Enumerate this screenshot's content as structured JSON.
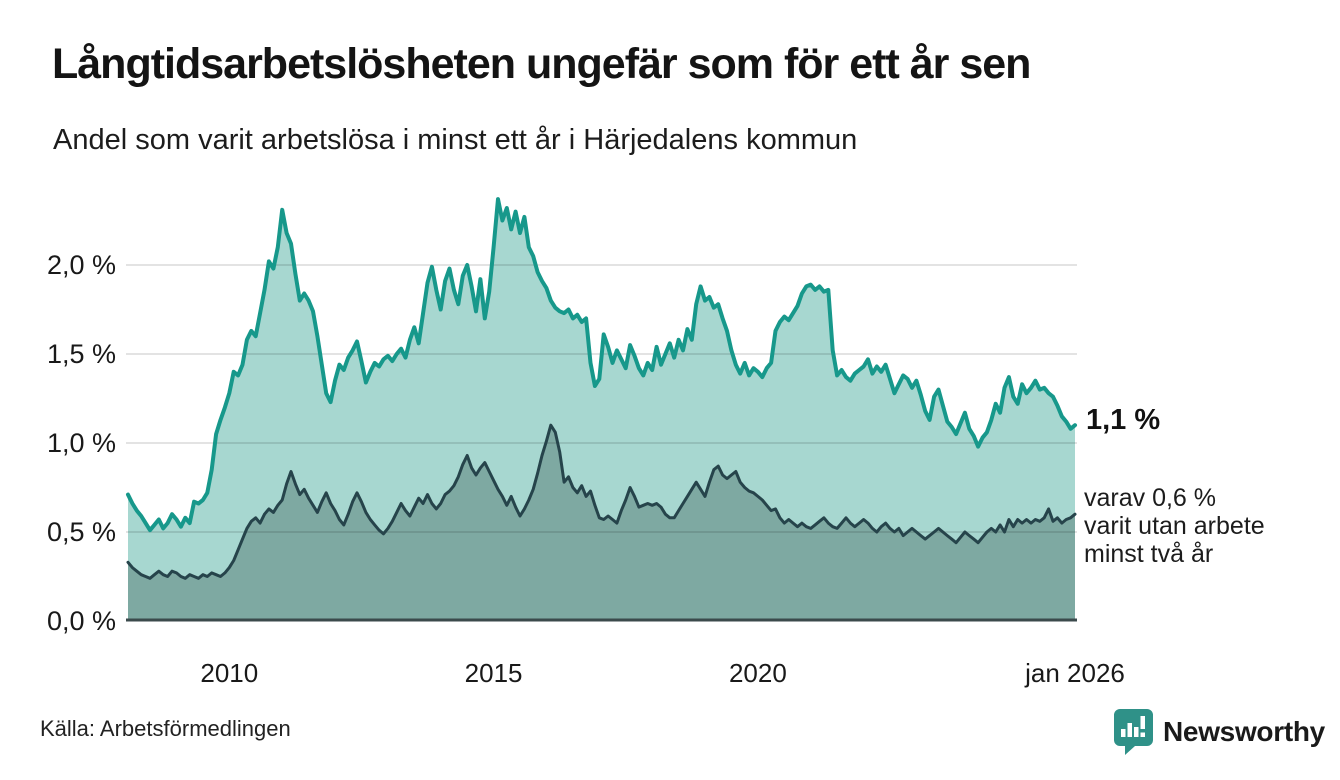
{
  "header": {
    "title": "Långtidsarbetslösheten ungefär som för ett år sen",
    "subtitle": "Andel som varit arbetslösa i minst ett år i Härjedalens kommun"
  },
  "axes": {
    "y": {
      "labels": [
        "2,0 %",
        "1,5 %",
        "1,0 %",
        "0,5 %",
        "0,0 %"
      ],
      "values": [
        2.0,
        1.5,
        1.0,
        0.5,
        0.0
      ]
    },
    "x": {
      "labels": [
        "2010",
        "2015",
        "2020",
        "jan 2026"
      ],
      "values": [
        2010,
        2015,
        2020,
        2026
      ]
    }
  },
  "annotations": {
    "latest_value": "1,1 %",
    "secondary": {
      "line1": "varav 0,6 %",
      "line2": "varit utan arbete",
      "line3": "minst två år"
    }
  },
  "footer": {
    "source": "Källa: Arbetsförmedlingen",
    "brand": "Newsworthy"
  },
  "colors": {
    "teal_line": "#17988b",
    "teal_fill": "#a7d7d0",
    "dark_line": "#26444b",
    "dark_fill": "#7ea9a2",
    "grid": "rgba(0,0,0,0.11)",
    "axis": "#3b4a4c",
    "brand_teal": "#2f9188",
    "text": "#1a1a1a"
  },
  "chart_data": {
    "type": "area",
    "title": "Långtidsarbetslösheten ungefär som för ett år sen",
    "subtitle": "Andel som varit arbetslösa i minst ett år i Härjedalens kommun",
    "unit": "%",
    "frequency": "monthly",
    "x_start": "2008-02",
    "x_end": "2026-01",
    "ylim": [
      0,
      2.4
    ],
    "yticks": [
      0.0,
      0.5,
      1.0,
      1.5,
      2.0
    ],
    "xticks": [
      {
        "t": 2010.0,
        "label": "2010"
      },
      {
        "t": 2015.0,
        "label": "2015"
      },
      {
        "t": 2020.0,
        "label": "2020"
      },
      {
        "t": 2026.0,
        "label": "jan 2026"
      }
    ],
    "grid": true,
    "legend_position": "right-annotations",
    "series": [
      {
        "name": "arbetslösa minst ett år",
        "latest_label": "1,1 %",
        "latest_value": 1.1,
        "values": [
          0.71,
          0.66,
          0.62,
          0.59,
          0.55,
          0.51,
          0.54,
          0.57,
          0.52,
          0.55,
          0.6,
          0.57,
          0.53,
          0.58,
          0.55,
          0.67,
          0.66,
          0.68,
          0.72,
          0.85,
          1.05,
          1.13,
          1.2,
          1.28,
          1.4,
          1.38,
          1.44,
          1.58,
          1.63,
          1.6,
          1.73,
          1.86,
          2.02,
          1.98,
          2.1,
          2.31,
          2.18,
          2.12,
          1.95,
          1.8,
          1.84,
          1.8,
          1.74,
          1.6,
          1.44,
          1.28,
          1.23,
          1.35,
          1.44,
          1.41,
          1.48,
          1.52,
          1.57,
          1.46,
          1.34,
          1.4,
          1.45,
          1.43,
          1.47,
          1.49,
          1.46,
          1.5,
          1.53,
          1.48,
          1.58,
          1.65,
          1.56,
          1.73,
          1.9,
          1.99,
          1.86,
          1.75,
          1.91,
          1.98,
          1.86,
          1.78,
          1.94,
          2.0,
          1.88,
          1.74,
          1.92,
          1.7,
          1.85,
          2.1,
          2.37,
          2.25,
          2.32,
          2.2,
          2.3,
          2.18,
          2.27,
          2.1,
          2.05,
          1.96,
          1.91,
          1.87,
          1.8,
          1.76,
          1.74,
          1.73,
          1.75,
          1.7,
          1.72,
          1.68,
          1.7,
          1.45,
          1.32,
          1.36,
          1.61,
          1.54,
          1.45,
          1.52,
          1.47,
          1.42,
          1.55,
          1.49,
          1.42,
          1.38,
          1.45,
          1.41,
          1.54,
          1.44,
          1.5,
          1.56,
          1.48,
          1.58,
          1.52,
          1.64,
          1.58,
          1.78,
          1.88,
          1.8,
          1.82,
          1.76,
          1.78,
          1.7,
          1.63,
          1.52,
          1.44,
          1.39,
          1.45,
          1.38,
          1.42,
          1.4,
          1.37,
          1.42,
          1.45,
          1.63,
          1.68,
          1.71,
          1.69,
          1.73,
          1.77,
          1.84,
          1.88,
          1.89,
          1.86,
          1.88,
          1.85,
          1.86,
          1.52,
          1.38,
          1.41,
          1.37,
          1.35,
          1.39,
          1.41,
          1.43,
          1.47,
          1.39,
          1.43,
          1.4,
          1.44,
          1.36,
          1.28,
          1.33,
          1.38,
          1.36,
          1.31,
          1.35,
          1.27,
          1.18,
          1.13,
          1.26,
          1.3,
          1.21,
          1.12,
          1.09,
          1.05,
          1.11,
          1.17,
          1.08,
          1.04,
          0.98,
          1.03,
          1.06,
          1.13,
          1.22,
          1.17,
          1.31,
          1.37,
          1.26,
          1.22,
          1.33,
          1.28,
          1.31,
          1.35,
          1.3,
          1.31,
          1.28,
          1.26,
          1.21,
          1.15,
          1.12,
          1.08,
          1.1
        ]
      },
      {
        "name": "varit utan arbete minst två år",
        "latest_label": "0,6 %",
        "latest_value": 0.6,
        "values": [
          0.33,
          0.3,
          0.28,
          0.26,
          0.25,
          0.24,
          0.26,
          0.28,
          0.26,
          0.25,
          0.28,
          0.27,
          0.25,
          0.24,
          0.26,
          0.25,
          0.24,
          0.26,
          0.25,
          0.27,
          0.26,
          0.25,
          0.27,
          0.3,
          0.34,
          0.4,
          0.46,
          0.52,
          0.56,
          0.58,
          0.55,
          0.6,
          0.63,
          0.61,
          0.65,
          0.68,
          0.77,
          0.84,
          0.77,
          0.71,
          0.74,
          0.69,
          0.65,
          0.61,
          0.67,
          0.72,
          0.66,
          0.62,
          0.57,
          0.54,
          0.6,
          0.67,
          0.72,
          0.67,
          0.61,
          0.57,
          0.54,
          0.51,
          0.49,
          0.52,
          0.56,
          0.61,
          0.66,
          0.62,
          0.59,
          0.64,
          0.69,
          0.66,
          0.71,
          0.66,
          0.63,
          0.66,
          0.71,
          0.73,
          0.76,
          0.81,
          0.88,
          0.93,
          0.86,
          0.82,
          0.86,
          0.89,
          0.84,
          0.79,
          0.74,
          0.7,
          0.65,
          0.7,
          0.64,
          0.59,
          0.63,
          0.68,
          0.74,
          0.83,
          0.93,
          1.01,
          1.1,
          1.06,
          0.95,
          0.78,
          0.81,
          0.75,
          0.72,
          0.76,
          0.7,
          0.73,
          0.65,
          0.58,
          0.57,
          0.59,
          0.57,
          0.55,
          0.62,
          0.68,
          0.75,
          0.7,
          0.64,
          0.65,
          0.66,
          0.65,
          0.66,
          0.64,
          0.6,
          0.58,
          0.58,
          0.62,
          0.66,
          0.7,
          0.74,
          0.78,
          0.74,
          0.7,
          0.78,
          0.85,
          0.87,
          0.82,
          0.8,
          0.82,
          0.84,
          0.78,
          0.75,
          0.73,
          0.72,
          0.7,
          0.68,
          0.65,
          0.62,
          0.63,
          0.58,
          0.55,
          0.57,
          0.55,
          0.53,
          0.55,
          0.53,
          0.52,
          0.54,
          0.56,
          0.58,
          0.55,
          0.53,
          0.52,
          0.55,
          0.58,
          0.55,
          0.53,
          0.55,
          0.57,
          0.55,
          0.52,
          0.5,
          0.53,
          0.55,
          0.52,
          0.5,
          0.52,
          0.48,
          0.5,
          0.52,
          0.5,
          0.48,
          0.46,
          0.48,
          0.5,
          0.52,
          0.5,
          0.48,
          0.46,
          0.44,
          0.47,
          0.5,
          0.48,
          0.46,
          0.44,
          0.47,
          0.5,
          0.52,
          0.5,
          0.54,
          0.5,
          0.57,
          0.53,
          0.57,
          0.55,
          0.57,
          0.55,
          0.57,
          0.56,
          0.58,
          0.63,
          0.56,
          0.58,
          0.55,
          0.57,
          0.58,
          0.6
        ]
      }
    ]
  }
}
